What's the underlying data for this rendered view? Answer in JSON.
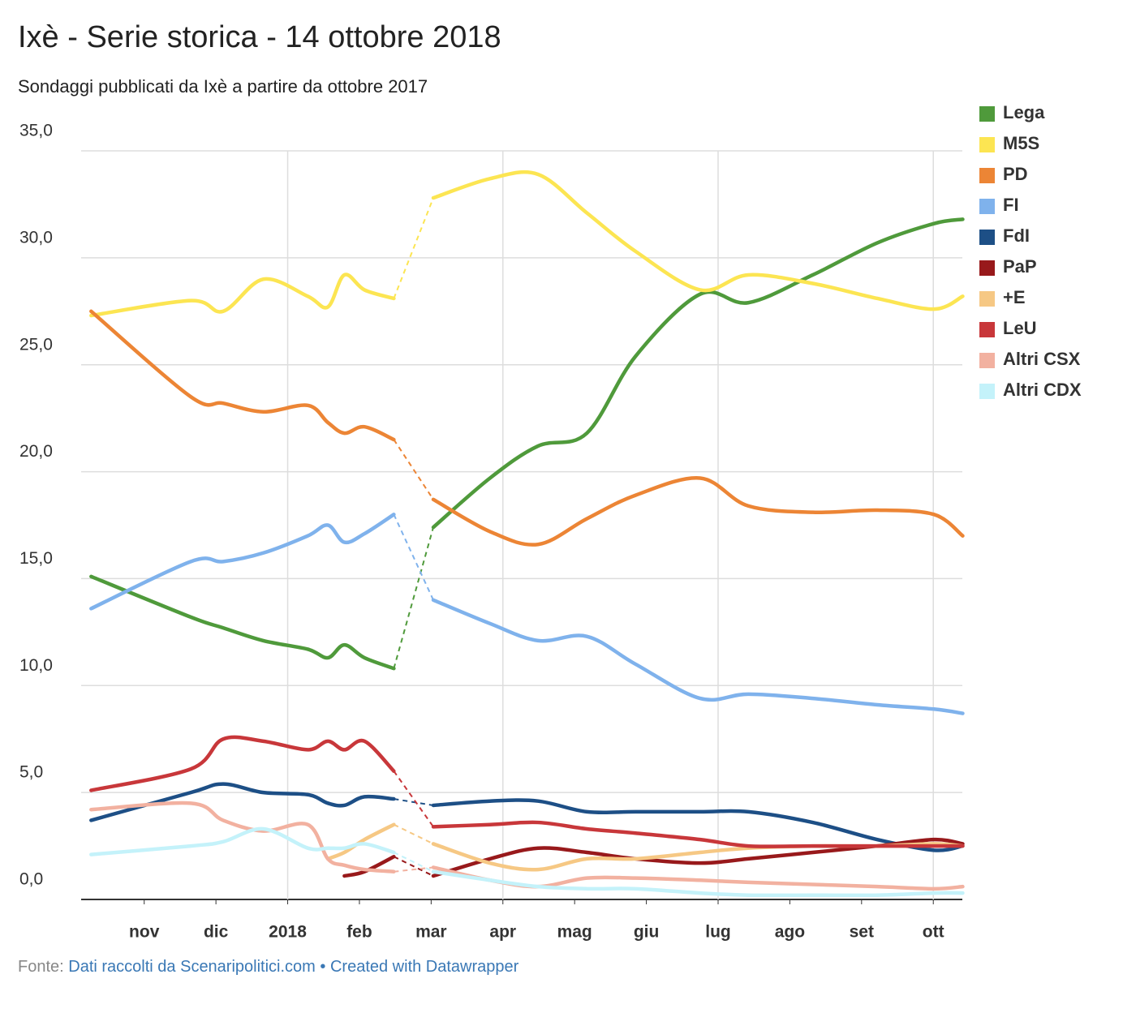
{
  "chart_data": {
    "type": "line",
    "title": "Ixè - Serie storica - 14 ottobre 2018",
    "subtitle": "Sondaggi pubblicati da Ixè a partire da ottobre 2017",
    "source_label": "Fonte:",
    "source": "Dati raccolti da Scenaripolitici.com",
    "separator": "•",
    "credit": "Created with Datawrapper",
    "x": [
      10.26,
      11.65,
      12.1,
      12.66,
      13.28,
      13.56,
      13.79,
      14.07,
      14.48,
      14.75,
      15.03,
      15.82,
      16.49,
      17.17,
      17.85,
      18.75,
      19.42,
      20.32,
      21.22,
      22.01,
      22.41
    ],
    "xlim": [
      10.2,
      22.45
    ],
    "xticks": [
      {
        "value": 11,
        "label": "nov"
      },
      {
        "value": 12,
        "label": "dic"
      },
      {
        "value": 13,
        "label": "2018"
      },
      {
        "value": 14,
        "label": "feb"
      },
      {
        "value": 15,
        "label": "mar"
      },
      {
        "value": 16,
        "label": "apr"
      },
      {
        "value": 17,
        "label": "mag"
      },
      {
        "value": 18,
        "label": "giu"
      },
      {
        "value": 19,
        "label": "lug"
      },
      {
        "value": 20,
        "label": "ago"
      },
      {
        "value": 21,
        "label": "set"
      },
      {
        "value": 22,
        "label": "ott"
      }
    ],
    "ylim": [
      0,
      35
    ],
    "yticks": [
      {
        "value": 0,
        "label": "0,0"
      },
      {
        "value": 5,
        "label": "5,0"
      },
      {
        "value": 10,
        "label": "10,0"
      },
      {
        "value": 15,
        "label": "15,0"
      },
      {
        "value": 20,
        "label": "20,0"
      },
      {
        "value": 25,
        "label": "25,0"
      },
      {
        "value": 30,
        "label": "30,0"
      },
      {
        "value": 35,
        "label": "35,0"
      }
    ],
    "grid": true,
    "legend": "right",
    "series": [
      {
        "name": "Lega",
        "color": "#4f9a3b",
        "values": [
          15.1,
          13.2,
          12.7,
          12.1,
          11.7,
          11.3,
          11.9,
          11.3,
          10.8,
          null,
          17.4,
          19.7,
          21.2,
          21.8,
          25.4,
          28.3,
          27.9,
          29.2,
          30.7,
          31.6,
          31.8
        ]
      },
      {
        "name": "M5S",
        "color": "#fce552",
        "values": [
          27.3,
          28.0,
          27.5,
          29.0,
          28.2,
          27.7,
          29.2,
          28.5,
          28.1,
          null,
          32.8,
          33.7,
          33.9,
          32.1,
          30.3,
          28.5,
          29.2,
          28.8,
          28.1,
          27.6,
          28.2
        ]
      },
      {
        "name": "PD",
        "color": "#ec8535",
        "values": [
          27.5,
          23.5,
          23.2,
          22.8,
          23.1,
          22.3,
          21.8,
          22.1,
          21.5,
          null,
          18.7,
          17.2,
          16.6,
          17.8,
          18.9,
          19.7,
          18.4,
          18.1,
          18.2,
          18.0,
          17.0
        ]
      },
      {
        "name": "FI",
        "color": "#7fb2ec",
        "values": [
          13.6,
          15.8,
          15.8,
          16.2,
          17.0,
          17.5,
          16.7,
          17.1,
          18.0,
          null,
          14.0,
          12.9,
          12.1,
          12.3,
          11.0,
          9.4,
          9.6,
          9.4,
          9.1,
          8.9,
          8.7
        ]
      },
      {
        "name": "FdI",
        "color": "#1d4f86",
        "values": [
          3.7,
          5.0,
          5.4,
          5.0,
          4.9,
          4.5,
          4.4,
          4.8,
          4.7,
          null,
          4.4,
          4.6,
          4.6,
          4.1,
          4.1,
          4.1,
          4.1,
          3.6,
          2.8,
          2.3,
          2.5
        ]
      },
      {
        "name": "PaP",
        "color": "#98191b",
        "values": [
          null,
          null,
          null,
          null,
          null,
          null,
          1.1,
          1.3,
          2.0,
          null,
          1.1,
          1.9,
          2.4,
          2.2,
          1.9,
          1.7,
          1.9,
          2.2,
          2.5,
          2.8,
          2.6
        ]
      },
      {
        "name": "+E",
        "color": "#f6c884",
        "values": [
          null,
          null,
          null,
          null,
          null,
          1.9,
          2.2,
          2.8,
          3.5,
          null,
          2.6,
          1.7,
          1.4,
          1.9,
          1.9,
          2.2,
          2.4,
          2.5,
          2.5,
          2.6,
          2.5
        ]
      },
      {
        "name": "LeU",
        "color": "#c8373a",
        "values": [
          5.1,
          6.1,
          7.5,
          7.4,
          7.0,
          7.4,
          7.0,
          7.4,
          6.0,
          null,
          3.4,
          3.5,
          3.6,
          3.3,
          3.1,
          2.8,
          2.5,
          2.5,
          2.5,
          2.5,
          2.5
        ]
      },
      {
        "name": "Altri CSX",
        "color": "#f2b1a0",
        "values": [
          4.2,
          4.5,
          3.7,
          3.2,
          3.5,
          1.9,
          1.6,
          1.4,
          1.3,
          null,
          1.5,
          0.9,
          0.6,
          1.0,
          1.0,
          0.9,
          0.8,
          0.7,
          0.6,
          0.5,
          0.6
        ]
      },
      {
        "name": "Altri CDX",
        "color": "#c4f2fa",
        "values": [
          2.1,
          2.5,
          2.7,
          3.3,
          2.4,
          2.4,
          2.4,
          2.6,
          2.2,
          null,
          1.3,
          0.9,
          0.6,
          0.5,
          0.5,
          0.3,
          0.2,
          0.2,
          0.2,
          0.3,
          0.3
        ]
      }
    ]
  }
}
